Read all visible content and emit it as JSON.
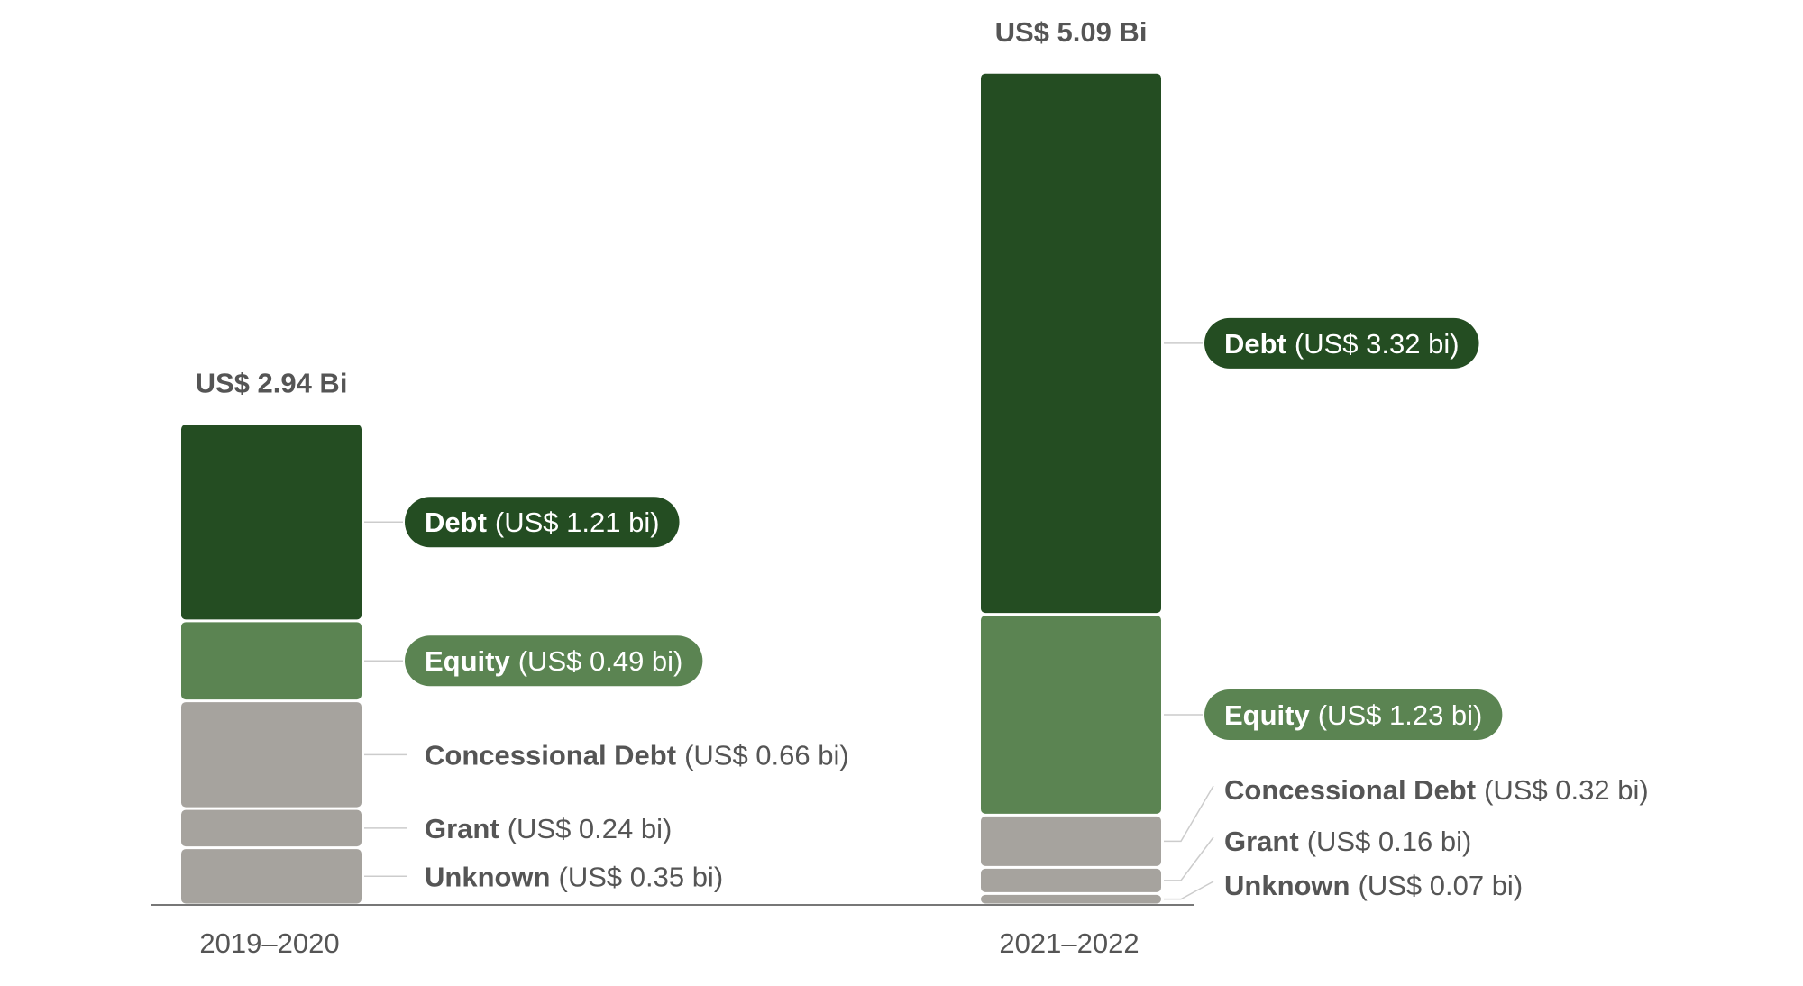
{
  "chart_data": {
    "type": "bar",
    "stacked": true,
    "categories": [
      "2019–2020",
      "2021–2022"
    ],
    "totals": [
      "US$ 2.94 Bi",
      "US$ 5.09 Bi"
    ],
    "total_values": [
      2.94,
      5.09
    ],
    "series": [
      {
        "name": "Unknown",
        "values": [
          0.35,
          0.07
        ],
        "labels": [
          "(US$ 0.35 bi)",
          "(US$ 0.07 bi)"
        ],
        "color": "#a6a39e",
        "label_style": "plain"
      },
      {
        "name": "Grant",
        "values": [
          0.24,
          0.16
        ],
        "labels": [
          "(US$ 0.24 bi)",
          "(US$ 0.16 bi)"
        ],
        "color": "#a6a39e",
        "label_style": "plain"
      },
      {
        "name": "Concessional Debt",
        "values": [
          0.66,
          0.32
        ],
        "labels": [
          "(US$ 0.66 bi)",
          "(US$ 0.32 bi)"
        ],
        "color": "#a6a39e",
        "label_style": "plain"
      },
      {
        "name": "Equity",
        "values": [
          0.49,
          1.23
        ],
        "labels": [
          "(US$ 0.49 bi)",
          "(US$ 1.23 bi)"
        ],
        "color": "#5b8452",
        "label_style": "pill"
      },
      {
        "name": "Debt",
        "values": [
          1.21,
          3.32
        ],
        "labels": [
          "(US$ 1.21 bi)",
          "(US$ 3.32 bi)"
        ],
        "color": "#244d22",
        "label_style": "pill"
      }
    ],
    "colors": {
      "label_text": "#555555",
      "total_text": "#555555",
      "axis_line": "#777777",
      "leader_line": "#cccccc",
      "pill_text": "#ffffff"
    },
    "grid": false,
    "legend": "none"
  }
}
